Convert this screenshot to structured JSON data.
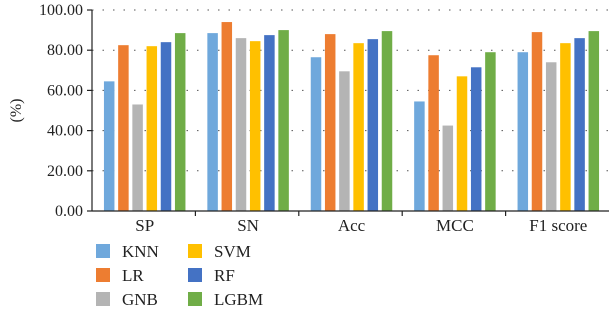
{
  "chart_data": {
    "type": "bar",
    "title": "",
    "xlabel": "",
    "ylabel": "(%)",
    "ylim": [
      0,
      100
    ],
    "yticks": [
      "0.00",
      "20.00",
      "40.00",
      "60.00",
      "80.00",
      "100.00"
    ],
    "grid": "horizontal dotted",
    "legend_position": "bottom-left",
    "categories": [
      "SP",
      "SN",
      "Acc",
      "MCC",
      "F1 score"
    ],
    "series": [
      {
        "name": "KNN",
        "color": "#6fa8dc",
        "values": [
          64.5,
          88.5,
          76.5,
          54.5,
          79.0
        ]
      },
      {
        "name": "LR",
        "color": "#ed7d31",
        "values": [
          82.5,
          94.0,
          88.0,
          77.5,
          89.0
        ]
      },
      {
        "name": "GNB",
        "color": "#b4b4b4",
        "values": [
          53.0,
          86.0,
          69.5,
          42.5,
          74.0
        ]
      },
      {
        "name": "SVM",
        "color": "#ffc000",
        "values": [
          82.0,
          84.5,
          83.5,
          67.0,
          83.5
        ]
      },
      {
        "name": "RF",
        "color": "#4472c4",
        "values": [
          84.0,
          87.5,
          85.5,
          71.5,
          86.0
        ]
      },
      {
        "name": "LGBM",
        "color": "#70ad47",
        "values": [
          88.5,
          90.0,
          89.5,
          79.0,
          89.5
        ]
      }
    ]
  }
}
